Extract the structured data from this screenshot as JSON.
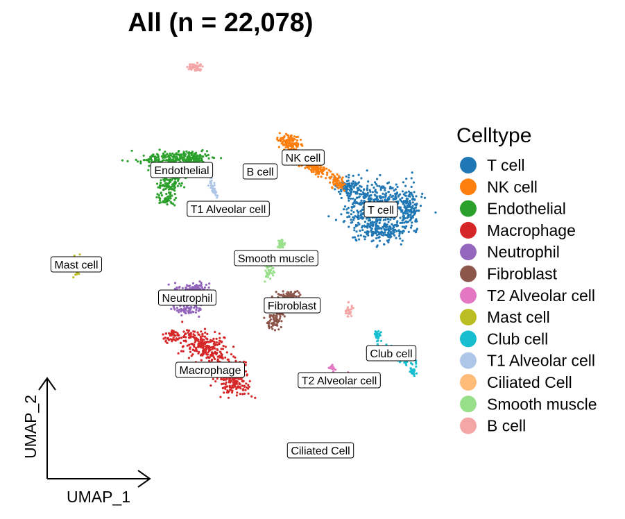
{
  "chart_data": {
    "type": "scatter",
    "title": "All (n = 22,078)",
    "xlabel": "UMAP_1",
    "ylabel": "UMAP_2",
    "legend_title": "Celltype",
    "legend_position": "right",
    "grid": false,
    "series": [
      {
        "name": "T cell",
        "color": "#1F77B4"
      },
      {
        "name": "NK cell",
        "color": "#FF7F0E"
      },
      {
        "name": "Endothelial",
        "color": "#2CA02C"
      },
      {
        "name": "Macrophage",
        "color": "#D62728"
      },
      {
        "name": "Neutrophil",
        "color": "#9467BD"
      },
      {
        "name": "Fibroblast",
        "color": "#8C564B"
      },
      {
        "name": "T2 Alveolar cell",
        "color": "#E377C2"
      },
      {
        "name": "Mast cell",
        "color": "#BCBD22"
      },
      {
        "name": "Club cell",
        "color": "#17BECF"
      },
      {
        "name": "T1 Alveolar cell",
        "color": "#AEC7E8"
      },
      {
        "name": "Ciliated Cell",
        "color": "#FFBB78"
      },
      {
        "name": "Smooth muscle",
        "color": "#98DF8A"
      },
      {
        "name": "B cell",
        "color": "#F4A6A6"
      }
    ],
    "cluster_labels": [
      "NK cell",
      "B cell",
      "Endothelial",
      "T1 Alveolar cell",
      "T cell",
      "Mast cell",
      "Smooth muscle",
      "Neutrophil",
      "Fibroblast",
      "Club cell",
      "Macrophage",
      "T2 Alveolar cell",
      "Ciliated Cell"
    ]
  }
}
